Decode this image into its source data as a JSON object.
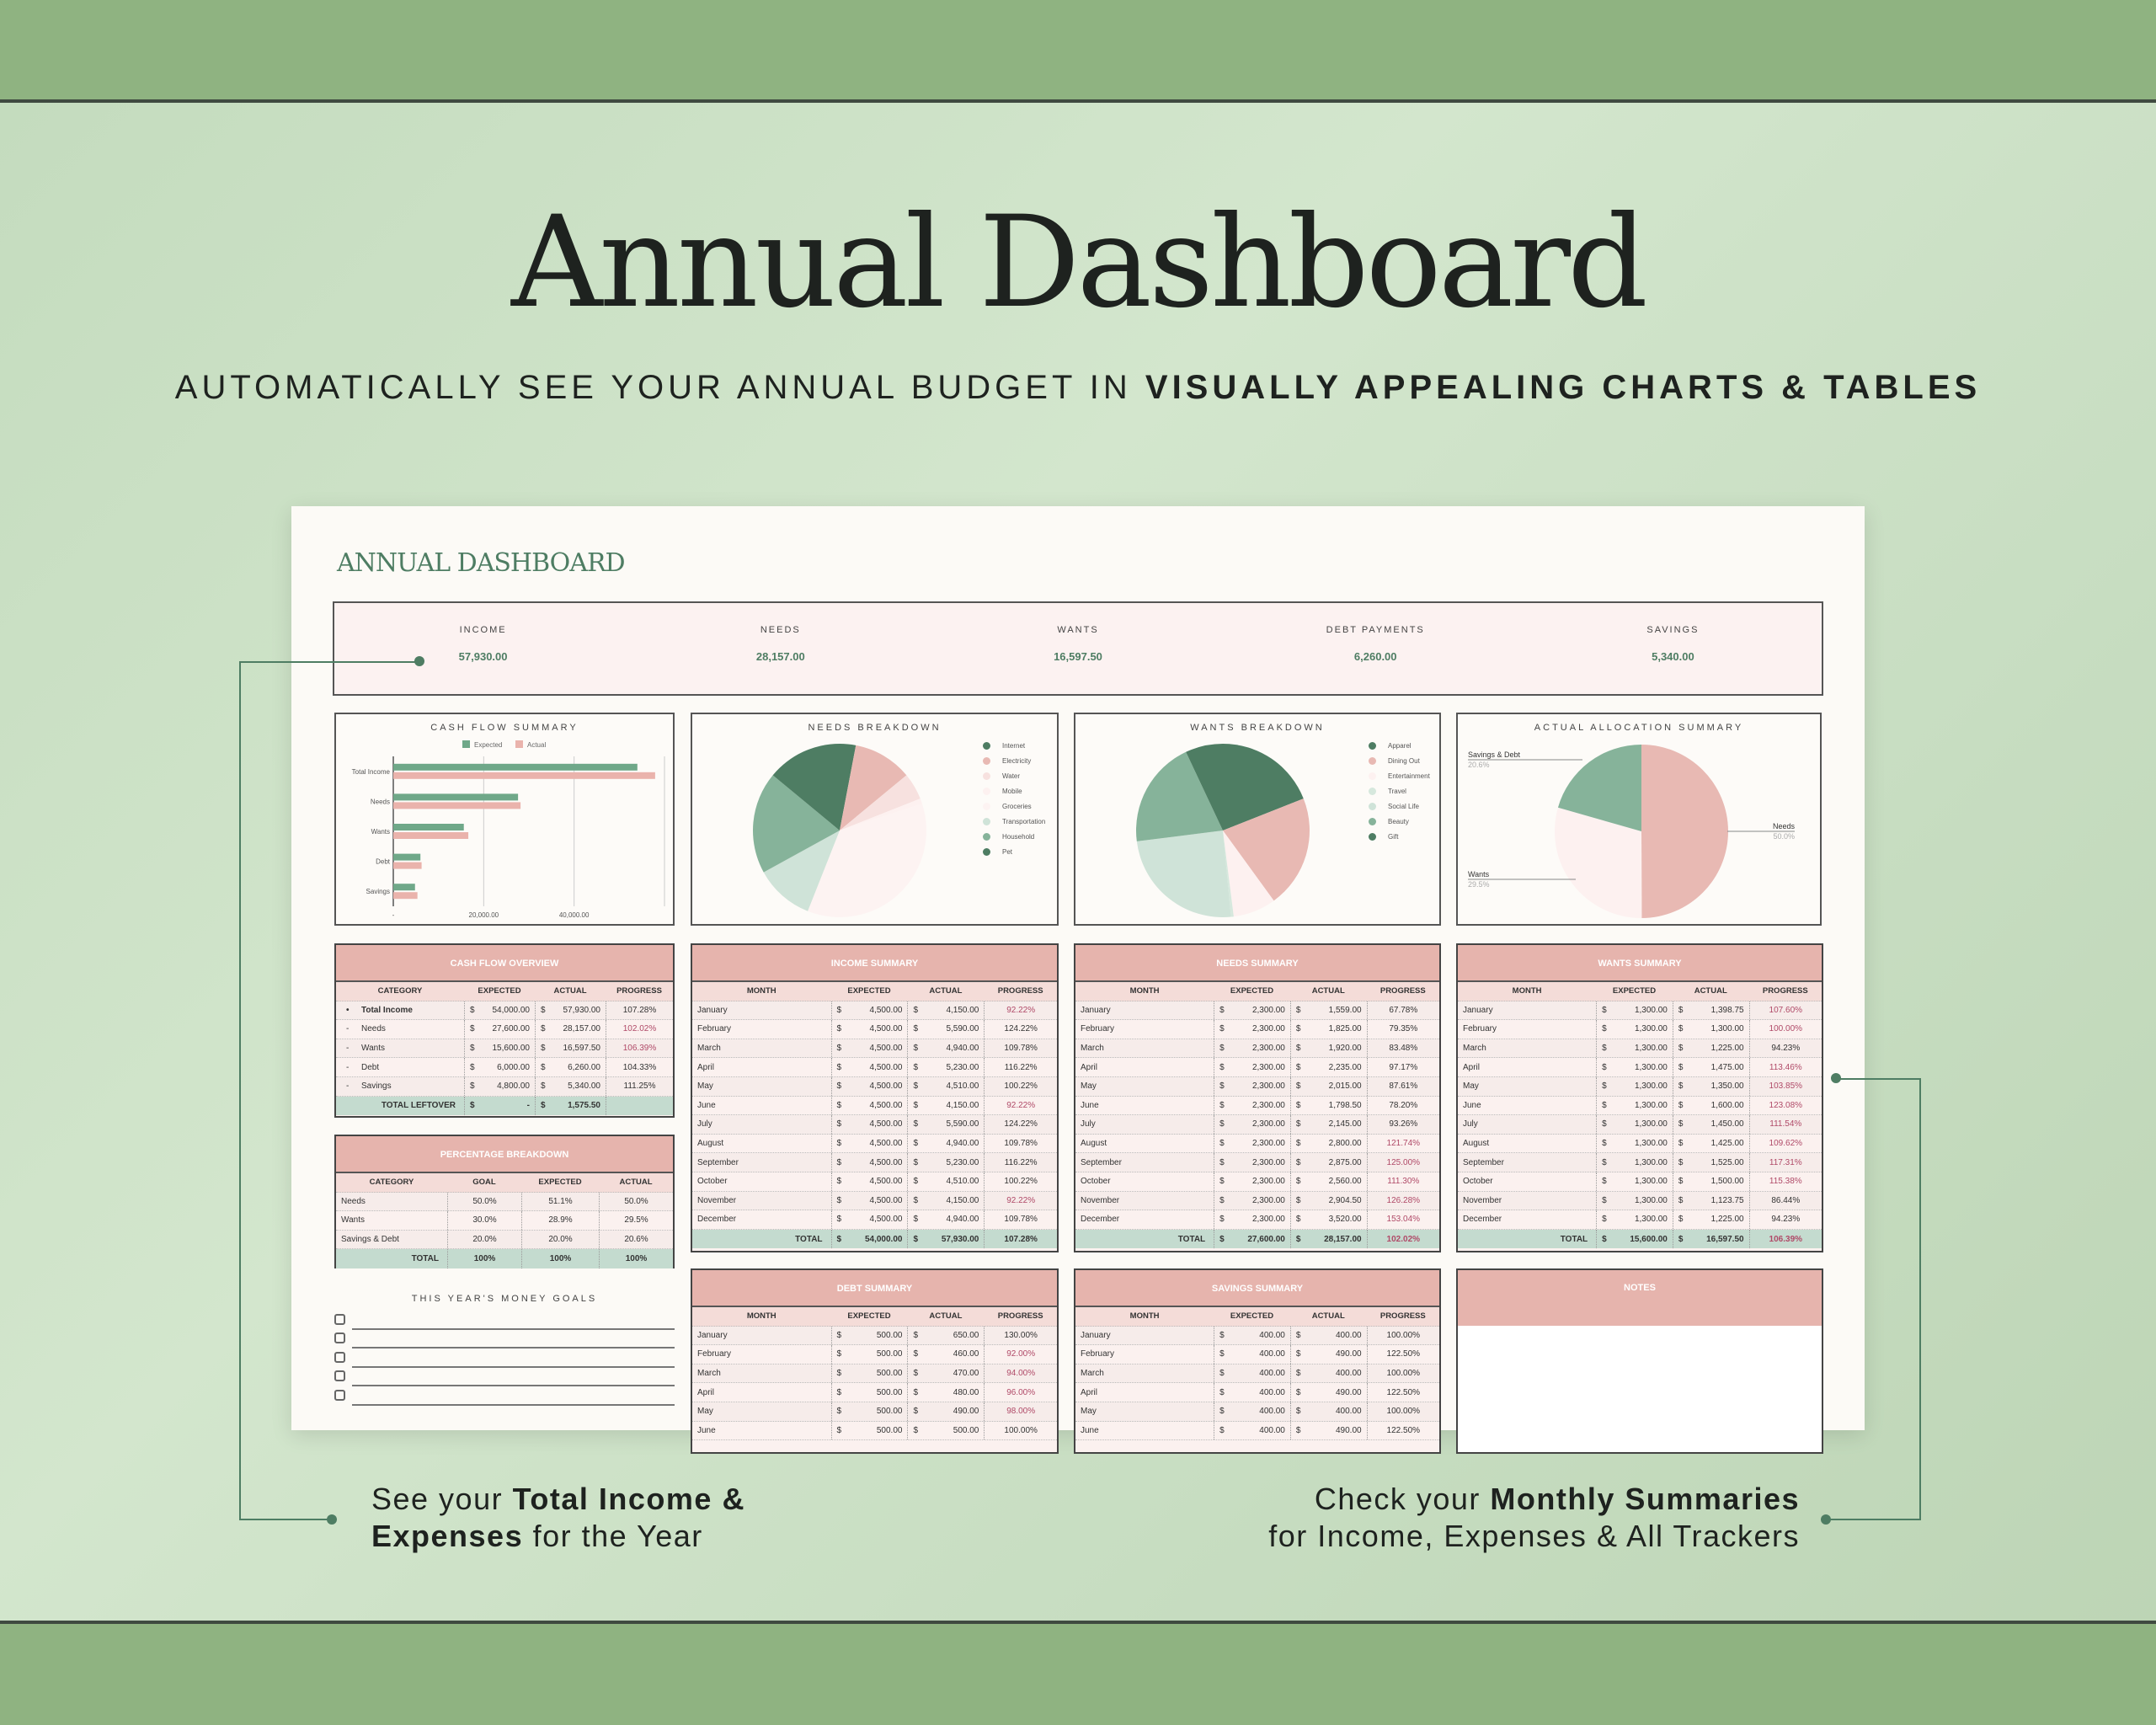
{
  "hero": {
    "title": "Annual Dashboard",
    "subtitle_plain": "AUTOMATICALLY SEE YOUR ANNUAL BUDGET IN ",
    "subtitle_bold": "VISUALLY APPEALING CHARTS & TABLES"
  },
  "card_title": "ANNUAL DASHBOARD",
  "summary": [
    {
      "label": "INCOME",
      "value": "57,930.00"
    },
    {
      "label": "NEEDS",
      "value": "28,157.00"
    },
    {
      "label": "WANTS",
      "value": "16,597.50"
    },
    {
      "label": "DEBT PAYMENTS",
      "value": "6,260.00"
    },
    {
      "label": "SAVINGS",
      "value": "5,340.00"
    }
  ],
  "colors": {
    "green_dark": "#4e7d63",
    "green_mid": "#86b39a",
    "green_light": "#cfe3d8",
    "pink": "#e8b9b3",
    "pink_light": "#f7e1df",
    "pink_pale": "#fdf1f0",
    "flag_red": "#b04a68",
    "header_pink": "#e6b4ad",
    "total_green": "#c4dbcf"
  },
  "currency": "$",
  "chart_data": [
    {
      "type": "bar",
      "orientation": "horizontal",
      "title": "CASH FLOW SUMMARY",
      "categories": [
        "Total Income",
        "Needs",
        "Wants",
        "Debt",
        "Savings"
      ],
      "series": [
        {
          "name": "Expected",
          "color": "#6fa889",
          "values": [
            54000,
            27600,
            15600,
            6000,
            4800
          ]
        },
        {
          "name": "Actual",
          "color": "#eab3ac",
          "values": [
            57930,
            28157,
            16597.5,
            6260,
            5340
          ]
        }
      ],
      "xlim": [
        0,
        60000
      ],
      "xticks": [
        "-",
        "20,000.00",
        "40,000.00"
      ],
      "grid": true,
      "legend": "top"
    },
    {
      "type": "pie",
      "title": "NEEDS BREAKDOWN",
      "legend": "right",
      "labels": [
        "Internet",
        "Electricity",
        "Water",
        "Mobile",
        "Groceries",
        "Transportation",
        "Household",
        "Pet"
      ],
      "values": [
        3,
        11,
        5,
        1,
        36,
        11,
        19,
        14
      ],
      "colors": [
        "#4e7d63",
        "#e8b9b3",
        "#f7e1df",
        "#fdf1f0",
        "#fdf3f2",
        "#cfe3d8",
        "#86b39a",
        "#4e7d63"
      ]
    },
    {
      "type": "pie",
      "title": "WANTS BREAKDOWN",
      "legend": "right",
      "labels": [
        "Apparel",
        "Dining Out",
        "Entertainment",
        "Travel",
        "Social Life",
        "Beauty",
        "Gift"
      ],
      "values": [
        19,
        21,
        8,
        0.5,
        24.5,
        20,
        7
      ],
      "colors": [
        "#4e7d63",
        "#e8b9b3",
        "#fdf1f0",
        "#d6e8dd",
        "#cfe3d8",
        "#86b39a",
        "#4e7d63"
      ]
    },
    {
      "type": "pie",
      "title": "ACTUAL ALLOCATION SUMMARY",
      "labels": [
        "Needs",
        "Wants",
        "Savings & Debt"
      ],
      "values": [
        50.0,
        29.5,
        20.6
      ],
      "value_labels": [
        "50.0%",
        "29.5%",
        "20.6%"
      ],
      "colors": [
        "#e8b9b3",
        "#fdf1f0",
        "#86b39a"
      ]
    }
  ],
  "tables": {
    "cashflow": {
      "title": "CASH FLOW OVERVIEW",
      "columns": [
        "CATEGORY",
        "EXPECTED",
        "ACTUAL",
        "PROGRESS"
      ],
      "rows": [
        {
          "marker": "•",
          "cells": [
            "Total Income",
            "54,000.00",
            "57,930.00",
            "107.28%"
          ],
          "flag": false,
          "bold": true
        },
        {
          "marker": "-",
          "cells": [
            "Needs",
            "27,600.00",
            "28,157.00",
            "102.02%"
          ],
          "flag": true
        },
        {
          "marker": "-",
          "cells": [
            "Wants",
            "15,600.00",
            "16,597.50",
            "106.39%"
          ],
          "flag": true
        },
        {
          "marker": "-",
          "cells": [
            "Debt",
            "6,000.00",
            "6,260.00",
            "104.33%"
          ],
          "flag": false
        },
        {
          "marker": "-",
          "cells": [
            "Savings",
            "4,800.00",
            "5,340.00",
            "111.25%"
          ],
          "flag": false
        }
      ],
      "total": {
        "cells": [
          "TOTAL LEFTOVER",
          "-",
          "1,575.50",
          ""
        ],
        "flag": false
      }
    },
    "percent": {
      "title": "PERCENTAGE BREAKDOWN",
      "columns": [
        "CATEGORY",
        "GOAL",
        "EXPECTED",
        "ACTUAL"
      ],
      "rows": [
        {
          "cells": [
            "Needs",
            "50.0%",
            "51.1%",
            "50.0%"
          ]
        },
        {
          "cells": [
            "Wants",
            "30.0%",
            "28.9%",
            "29.5%"
          ]
        },
        {
          "cells": [
            "Savings & Debt",
            "20.0%",
            "20.0%",
            "20.6%"
          ]
        }
      ],
      "total": {
        "cells": [
          "TOTAL",
          "100%",
          "100%",
          "100%"
        ]
      }
    },
    "income": {
      "title": "INCOME SUMMARY",
      "columns": [
        "MONTH",
        "EXPECTED",
        "ACTUAL",
        "PROGRESS"
      ],
      "rows": [
        {
          "cells": [
            "January",
            "4,500.00",
            "4,150.00",
            "92.22%"
          ],
          "flag": true
        },
        {
          "cells": [
            "February",
            "4,500.00",
            "5,590.00",
            "124.22%"
          ]
        },
        {
          "cells": [
            "March",
            "4,500.00",
            "4,940.00",
            "109.78%"
          ]
        },
        {
          "cells": [
            "April",
            "4,500.00",
            "5,230.00",
            "116.22%"
          ]
        },
        {
          "cells": [
            "May",
            "4,500.00",
            "4,510.00",
            "100.22%"
          ]
        },
        {
          "cells": [
            "June",
            "4,500.00",
            "4,150.00",
            "92.22%"
          ],
          "flag": true
        },
        {
          "cells": [
            "July",
            "4,500.00",
            "5,590.00",
            "124.22%"
          ]
        },
        {
          "cells": [
            "August",
            "4,500.00",
            "4,940.00",
            "109.78%"
          ]
        },
        {
          "cells": [
            "September",
            "4,500.00",
            "5,230.00",
            "116.22%"
          ]
        },
        {
          "cells": [
            "October",
            "4,500.00",
            "4,510.00",
            "100.22%"
          ]
        },
        {
          "cells": [
            "November",
            "4,500.00",
            "4,150.00",
            "92.22%"
          ],
          "flag": true
        },
        {
          "cells": [
            "December",
            "4,500.00",
            "4,940.00",
            "109.78%"
          ]
        }
      ],
      "total": {
        "cells": [
          "TOTAL",
          "54,000.00",
          "57,930.00",
          "107.28%"
        ]
      }
    },
    "needs": {
      "title": "NEEDS SUMMARY",
      "columns": [
        "MONTH",
        "EXPECTED",
        "ACTUAL",
        "PROGRESS"
      ],
      "rows": [
        {
          "cells": [
            "January",
            "2,300.00",
            "1,559.00",
            "67.78%"
          ]
        },
        {
          "cells": [
            "February",
            "2,300.00",
            "1,825.00",
            "79.35%"
          ]
        },
        {
          "cells": [
            "March",
            "2,300.00",
            "1,920.00",
            "83.48%"
          ]
        },
        {
          "cells": [
            "April",
            "2,300.00",
            "2,235.00",
            "97.17%"
          ]
        },
        {
          "cells": [
            "May",
            "2,300.00",
            "2,015.00",
            "87.61%"
          ]
        },
        {
          "cells": [
            "June",
            "2,300.00",
            "1,798.50",
            "78.20%"
          ]
        },
        {
          "cells": [
            "July",
            "2,300.00",
            "2,145.00",
            "93.26%"
          ]
        },
        {
          "cells": [
            "August",
            "2,300.00",
            "2,800.00",
            "121.74%"
          ],
          "flag": true
        },
        {
          "cells": [
            "September",
            "2,300.00",
            "2,875.00",
            "125.00%"
          ],
          "flag": true
        },
        {
          "cells": [
            "October",
            "2,300.00",
            "2,560.00",
            "111.30%"
          ],
          "flag": true
        },
        {
          "cells": [
            "November",
            "2,300.00",
            "2,904.50",
            "126.28%"
          ],
          "flag": true
        },
        {
          "cells": [
            "December",
            "2,300.00",
            "3,520.00",
            "153.04%"
          ],
          "flag": true
        }
      ],
      "total": {
        "cells": [
          "TOTAL",
          "27,600.00",
          "28,157.00",
          "102.02%"
        ],
        "flag": true
      }
    },
    "wants": {
      "title": "WANTS SUMMARY",
      "columns": [
        "MONTH",
        "EXPECTED",
        "ACTUAL",
        "PROGRESS"
      ],
      "rows": [
        {
          "cells": [
            "January",
            "1,300.00",
            "1,398.75",
            "107.60%"
          ],
          "flag": true
        },
        {
          "cells": [
            "February",
            "1,300.00",
            "1,300.00",
            "100.00%"
          ],
          "flag": true
        },
        {
          "cells": [
            "March",
            "1,300.00",
            "1,225.00",
            "94.23%"
          ]
        },
        {
          "cells": [
            "April",
            "1,300.00",
            "1,475.00",
            "113.46%"
          ],
          "flag": true
        },
        {
          "cells": [
            "May",
            "1,300.00",
            "1,350.00",
            "103.85%"
          ],
          "flag": true
        },
        {
          "cells": [
            "June",
            "1,300.00",
            "1,600.00",
            "123.08%"
          ],
          "flag": true
        },
        {
          "cells": [
            "July",
            "1,300.00",
            "1,450.00",
            "111.54%"
          ],
          "flag": true
        },
        {
          "cells": [
            "August",
            "1,300.00",
            "1,425.00",
            "109.62%"
          ],
          "flag": true
        },
        {
          "cells": [
            "September",
            "1,300.00",
            "1,525.00",
            "117.31%"
          ],
          "flag": true
        },
        {
          "cells": [
            "October",
            "1,300.00",
            "1,500.00",
            "115.38%"
          ],
          "flag": true
        },
        {
          "cells": [
            "November",
            "1,300.00",
            "1,123.75",
            "86.44%"
          ]
        },
        {
          "cells": [
            "December",
            "1,300.00",
            "1,225.00",
            "94.23%"
          ]
        }
      ],
      "total": {
        "cells": [
          "TOTAL",
          "15,600.00",
          "16,597.50",
          "106.39%"
        ],
        "flag": true
      }
    },
    "debt": {
      "title": "DEBT SUMMARY",
      "columns": [
        "MONTH",
        "EXPECTED",
        "ACTUAL",
        "PROGRESS"
      ],
      "rows": [
        {
          "cells": [
            "January",
            "500.00",
            "650.00",
            "130.00%"
          ]
        },
        {
          "cells": [
            "February",
            "500.00",
            "460.00",
            "92.00%"
          ],
          "flag": true
        },
        {
          "cells": [
            "March",
            "500.00",
            "470.00",
            "94.00%"
          ],
          "flag": true
        },
        {
          "cells": [
            "April",
            "500.00",
            "480.00",
            "96.00%"
          ],
          "flag": true
        },
        {
          "cells": [
            "May",
            "500.00",
            "490.00",
            "98.00%"
          ],
          "flag": true
        },
        {
          "cells": [
            "June",
            "500.00",
            "500.00",
            "100.00%"
          ]
        }
      ]
    },
    "savings": {
      "title": "SAVINGS SUMMARY",
      "columns": [
        "MONTH",
        "EXPECTED",
        "ACTUAL",
        "PROGRESS"
      ],
      "rows": [
        {
          "cells": [
            "January",
            "400.00",
            "400.00",
            "100.00%"
          ]
        },
        {
          "cells": [
            "February",
            "400.00",
            "490.00",
            "122.50%"
          ]
        },
        {
          "cells": [
            "March",
            "400.00",
            "400.00",
            "100.00%"
          ]
        },
        {
          "cells": [
            "April",
            "400.00",
            "490.00",
            "122.50%"
          ]
        },
        {
          "cells": [
            "May",
            "400.00",
            "400.00",
            "100.00%"
          ]
        },
        {
          "cells": [
            "June",
            "400.00",
            "490.00",
            "122.50%"
          ]
        }
      ]
    }
  },
  "goals": {
    "title": "THIS YEAR'S MONEY GOALS",
    "count": 5
  },
  "notes": {
    "title": "NOTES"
  },
  "callouts": {
    "left": {
      "l1a": "See your ",
      "l1b": "Total Income &",
      "l2a": "Expenses",
      "l2b": " for the Year"
    },
    "right": {
      "l1a": "Check your ",
      "l1b": "Monthly Summaries",
      "l2": "for Income, Expenses & All Trackers"
    }
  }
}
